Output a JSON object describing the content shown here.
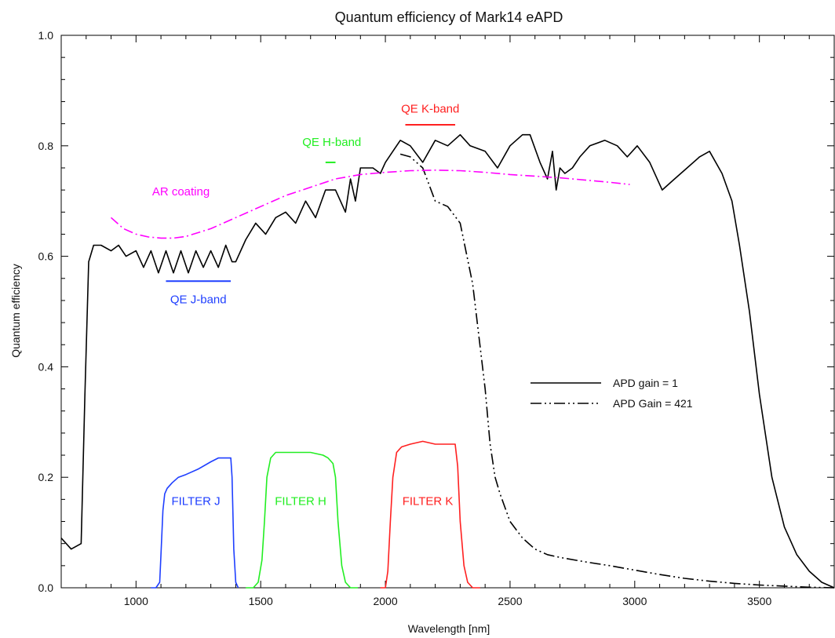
{
  "chart_data": {
    "type": "line",
    "title": "Quantum efficiency of Mark14 eAPD",
    "xlabel": "Wavelength [nm]",
    "ylabel": "Quantum efficiency",
    "xlim": [
      700,
      3800
    ],
    "ylim": [
      0,
      1.0
    ],
    "x_ticks": [
      1000,
      1500,
      2000,
      2500,
      3000,
      3500
    ],
    "y_ticks": [
      0.0,
      0.2,
      0.4,
      0.6,
      0.8,
      1.0
    ],
    "y_tick_labels": [
      "0.0",
      "0.2",
      "0.4",
      "0.6",
      "0.8",
      "1.0"
    ],
    "legend_position": "center-right",
    "grid": false,
    "series": [
      {
        "name": "APD gain = 1",
        "style": "solid",
        "color": "#000000",
        "x": [
          700,
          740,
          780,
          795,
          810,
          830,
          860,
          900,
          930,
          960,
          1000,
          1030,
          1060,
          1090,
          1120,
          1150,
          1180,
          1210,
          1240,
          1270,
          1300,
          1330,
          1360,
          1385,
          1400,
          1440,
          1480,
          1520,
          1560,
          1600,
          1640,
          1680,
          1720,
          1760,
          1800,
          1840,
          1860,
          1880,
          1900,
          1920,
          1950,
          1980,
          2000,
          2030,
          2060,
          2100,
          2150,
          2200,
          2250,
          2300,
          2340,
          2400,
          2450,
          2500,
          2550,
          2580,
          2620,
          2650,
          2670,
          2685,
          2700,
          2720,
          2750,
          2780,
          2820,
          2880,
          2930,
          2970,
          3010,
          3060,
          3110,
          3160,
          3210,
          3260,
          3300,
          3350,
          3390,
          3420,
          3460,
          3500,
          3550,
          3600,
          3650,
          3700,
          3750,
          3800
        ],
        "y": [
          0.09,
          0.07,
          0.08,
          0.35,
          0.59,
          0.62,
          0.62,
          0.61,
          0.62,
          0.6,
          0.61,
          0.58,
          0.61,
          0.57,
          0.61,
          0.57,
          0.61,
          0.57,
          0.61,
          0.58,
          0.61,
          0.58,
          0.62,
          0.59,
          0.59,
          0.63,
          0.66,
          0.64,
          0.67,
          0.68,
          0.66,
          0.7,
          0.67,
          0.72,
          0.72,
          0.68,
          0.74,
          0.7,
          0.76,
          0.76,
          0.76,
          0.75,
          0.77,
          0.79,
          0.81,
          0.8,
          0.77,
          0.81,
          0.8,
          0.82,
          0.8,
          0.79,
          0.76,
          0.8,
          0.82,
          0.82,
          0.77,
          0.74,
          0.79,
          0.72,
          0.76,
          0.75,
          0.76,
          0.78,
          0.8,
          0.81,
          0.8,
          0.78,
          0.8,
          0.77,
          0.72,
          0.74,
          0.76,
          0.78,
          0.79,
          0.75,
          0.7,
          0.62,
          0.5,
          0.35,
          0.2,
          0.11,
          0.06,
          0.03,
          0.01,
          0.0
        ]
      },
      {
        "name": "APD Gain = 421",
        "style": "dash-dot-dot",
        "color": "#000000",
        "x": [
          2060,
          2100,
          2150,
          2200,
          2250,
          2300,
          2350,
          2400,
          2420,
          2440,
          2460,
          2500,
          2550,
          2600,
          2650,
          2700,
          2800,
          2900,
          3000,
          3100,
          3200,
          3300,
          3400,
          3500,
          3600,
          3700,
          3800
        ],
        "y": [
          0.785,
          0.78,
          0.76,
          0.7,
          0.69,
          0.66,
          0.55,
          0.36,
          0.26,
          0.2,
          0.17,
          0.12,
          0.09,
          0.07,
          0.06,
          0.055,
          0.047,
          0.04,
          0.032,
          0.024,
          0.017,
          0.012,
          0.008,
          0.005,
          0.003,
          0.001,
          0.0
        ]
      },
      {
        "name": "AR coating",
        "style": "dash-dot",
        "color": "#ff00ff",
        "x": [
          900,
          950,
          1000,
          1050,
          1100,
          1150,
          1200,
          1300,
          1400,
          1500,
          1600,
          1700,
          1800,
          1900,
          2000,
          2100,
          2200,
          2300,
          2400,
          2500,
          2600,
          2700,
          2800,
          2900,
          2980
        ],
        "y": [
          0.67,
          0.65,
          0.64,
          0.635,
          0.633,
          0.633,
          0.636,
          0.65,
          0.67,
          0.69,
          0.71,
          0.725,
          0.74,
          0.748,
          0.752,
          0.755,
          0.756,
          0.755,
          0.752,
          0.748,
          0.745,
          0.742,
          0.738,
          0.734,
          0.73
        ]
      },
      {
        "name": "FILTER J",
        "style": "solid",
        "color": "#1f3fff",
        "x": [
          1060,
          1080,
          1095,
          1100,
          1108,
          1115,
          1125,
          1145,
          1170,
          1200,
          1250,
          1300,
          1330,
          1360,
          1380,
          1385,
          1392,
          1400,
          1410
        ],
        "y": [
          0.0,
          0.0,
          0.01,
          0.06,
          0.14,
          0.17,
          0.18,
          0.19,
          0.2,
          0.205,
          0.215,
          0.228,
          0.235,
          0.235,
          0.235,
          0.2,
          0.07,
          0.01,
          0.0
        ]
      },
      {
        "name": "FILTER H",
        "style": "solid",
        "color": "#22ee22",
        "x": [
          1440,
          1470,
          1490,
          1505,
          1515,
          1525,
          1540,
          1560,
          1600,
          1650,
          1700,
          1750,
          1770,
          1790,
          1800,
          1810,
          1825,
          1840,
          1860,
          1890
        ],
        "y": [
          0.0,
          0.0,
          0.01,
          0.05,
          0.12,
          0.2,
          0.235,
          0.245,
          0.245,
          0.245,
          0.245,
          0.24,
          0.235,
          0.225,
          0.2,
          0.12,
          0.04,
          0.01,
          0.0,
          0.0
        ]
      },
      {
        "name": "FILTER K",
        "style": "solid",
        "color": "#ff2020",
        "x": [
          1980,
          2000,
          2010,
          2020,
          2030,
          2045,
          2065,
          2100,
          2150,
          2200,
          2250,
          2280,
          2290,
          2300,
          2315,
          2330,
          2350,
          2380
        ],
        "y": [
          0.0,
          0.0,
          0.03,
          0.12,
          0.2,
          0.245,
          0.255,
          0.26,
          0.265,
          0.26,
          0.26,
          0.26,
          0.22,
          0.12,
          0.04,
          0.01,
          0.0,
          0.0
        ]
      }
    ],
    "bandbars": [
      {
        "name": "QE J-band",
        "color": "#1f3fff",
        "x_start": 1120,
        "x_end": 1380,
        "y": 0.555
      },
      {
        "name": "QE H-band",
        "color": "#22ee22",
        "x_start": 1760,
        "x_end": 1800,
        "y": 0.77
      },
      {
        "name": "QE K-band",
        "color": "#ff2020",
        "x_start": 2080,
        "x_end": 2280,
        "y": 0.838
      }
    ],
    "annotations": [
      {
        "text": "AR coating",
        "color": "#ff00ff",
        "x": 1180,
        "y": 0.71
      },
      {
        "text": "QE H-band",
        "color": "#22ee22",
        "x": 1785,
        "y": 0.8
      },
      {
        "text": "QE K-band",
        "color": "#ff2020",
        "x": 2180,
        "y": 0.86
      },
      {
        "text": "QE J-band",
        "color": "#1f3fff",
        "x": 1250,
        "y": 0.515
      },
      {
        "text": "FILTER J",
        "color": "#1f3fff",
        "x": 1240,
        "y": 0.15
      },
      {
        "text": "FILTER H",
        "color": "#22ee22",
        "x": 1660,
        "y": 0.15
      },
      {
        "text": "FILTER K",
        "color": "#ff2020",
        "x": 2170,
        "y": 0.15
      }
    ],
    "legend": [
      {
        "label": "APD gain = 1",
        "style": "solid"
      },
      {
        "label": "APD Gain = 421",
        "style": "dash-dot-dot"
      }
    ]
  }
}
